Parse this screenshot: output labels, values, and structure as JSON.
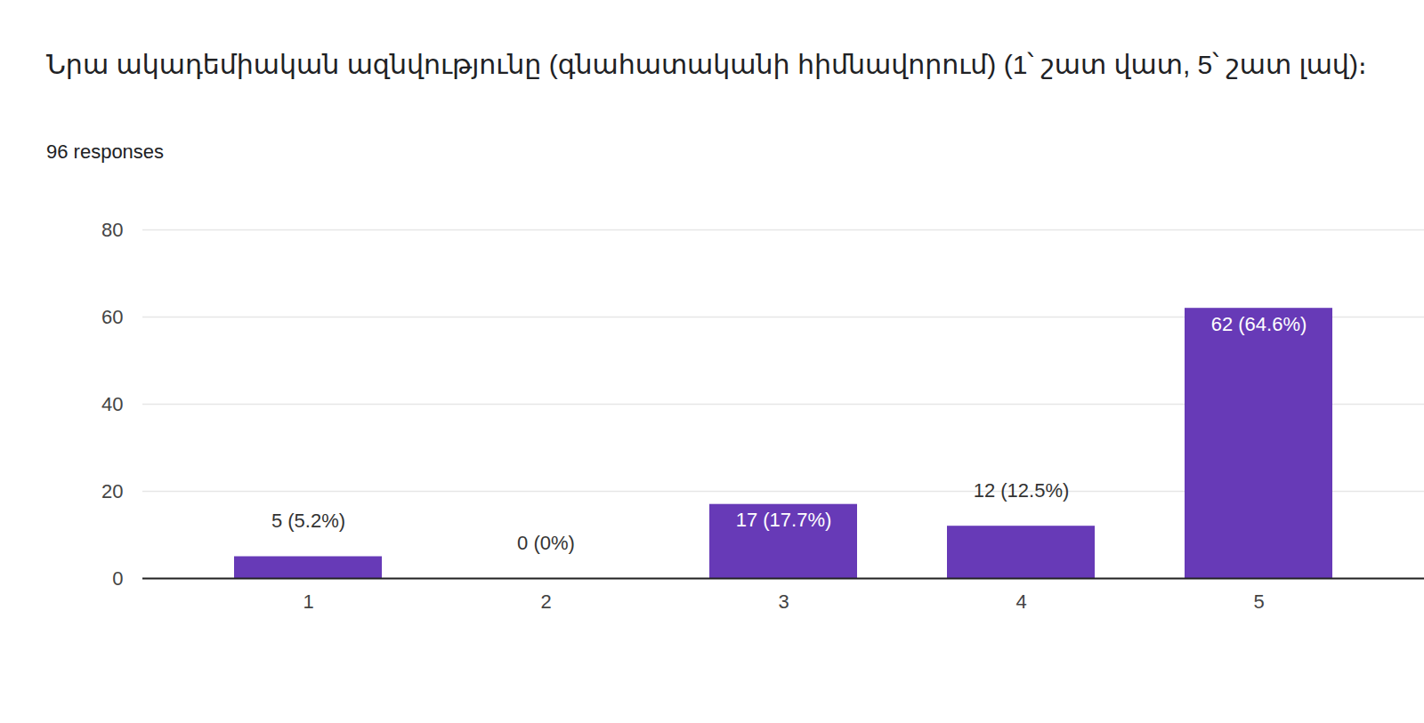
{
  "chart_data": {
    "type": "bar",
    "title": "Նրա ակադեմիական ազնվությունը (գնահատականի հիմնավորում)  (1՝ շատ վատ, 5՝ շատ լավ)։",
    "subtitle": "96 responses",
    "categories": [
      "1",
      "2",
      "3",
      "4",
      "5"
    ],
    "values": [
      5,
      0,
      17,
      12,
      62
    ],
    "value_labels": [
      "5 (5.2%)",
      "0 (0%)",
      "17 (17.7%)",
      "12 (12.5%)",
      "62 (64.6%)"
    ],
    "data_labels": true,
    "color": "#673ab7",
    "ylim": [
      0,
      80
    ],
    "yticks": [
      0,
      20,
      40,
      60,
      80
    ],
    "grid": true
  }
}
